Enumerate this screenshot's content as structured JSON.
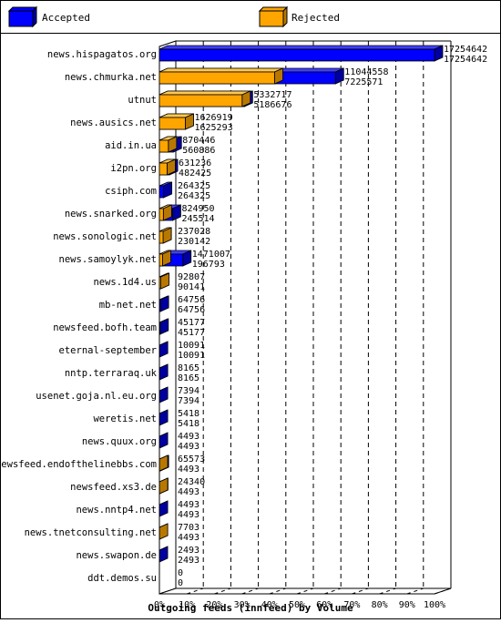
{
  "chart_data": {
    "type": "bar",
    "orientation": "horizontal",
    "style": "3d-overlapping",
    "title": "Outgoing feeds (innfeed) by Volume",
    "xlabel": "",
    "ylabel": "",
    "xlim": [
      0,
      100
    ],
    "x_unit": "percent of largest feed",
    "x_ticks": [
      "0%",
      "10%",
      "20%",
      "30%",
      "40%",
      "50%",
      "60%",
      "70%",
      "80%",
      "90%",
      "100%"
    ],
    "grid": true,
    "legend_position": "top",
    "colors": {
      "accepted": "#0000ff",
      "rejected": "#ffa500"
    },
    "series": [
      {
        "name": "Accepted",
        "values": [
          17254642,
          11044558,
          5332717,
          1626919,
          870446,
          631236,
          264325,
          824950,
          237028,
          1471007,
          92807,
          64756,
          45177,
          10091,
          8165,
          7394,
          5418,
          4493,
          65573,
          24340,
          4493,
          7703,
          2493,
          0
        ]
      },
      {
        "name": "Rejected",
        "values": [
          17254642,
          7225571,
          5186676,
          1625293,
          560886,
          482425,
          264325,
          245514,
          230142,
          196793,
          90141,
          64756,
          45177,
          10091,
          8165,
          7394,
          5418,
          4493,
          4493,
          4493,
          4493,
          4493,
          2493,
          0
        ]
      }
    ],
    "categories": [
      "news.hispagatos.org",
      "news.chmurka.net",
      "utnut",
      "news.ausics.net",
      "aid.in.ua",
      "i2pn.org",
      "csiph.com",
      "news.snarked.org",
      "news.sonologic.net",
      "news.samoylyk.net",
      "news.1d4.us",
      "mb-net.net",
      "newsfeed.bofh.team",
      "eternal-september",
      "nntp.terraraq.uk",
      "usenet.goja.nl.eu.org",
      "weretis.net",
      "news.quux.org",
      "newsfeed.endofthelinebbs.com",
      "newsfeed.xs3.de",
      "news.nntp4.net",
      "news.tnetconsulting.net",
      "news.swapon.de",
      "ddt.demos.su"
    ],
    "labels_top": [
      "17254642",
      "11044558",
      "5332717",
      "1626919",
      "870446",
      "631236",
      "264325",
      "824950",
      "237028",
      "1471007",
      "92807",
      "64756",
      "45177",
      "10091",
      "8165",
      "7394",
      "5418",
      "4493",
      "65573",
      "24340",
      "4493",
      "7703",
      "2493",
      "0"
    ],
    "labels_bottom": [
      "17254642",
      "7225571",
      "5186676",
      "1625293",
      "560886",
      "482425",
      "264325",
      "245514",
      "230142",
      "196793",
      "90141",
      "64756",
      "45177",
      "10091",
      "8165",
      "7394",
      "5418",
      "4493",
      "4493",
      "4493",
      "4493",
      "4493",
      "2493",
      "0"
    ]
  }
}
